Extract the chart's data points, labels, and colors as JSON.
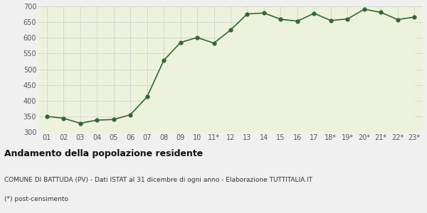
{
  "labels": [
    "01",
    "02",
    "03",
    "04",
    "05",
    "06",
    "07",
    "08",
    "09",
    "10",
    "11*",
    "12",
    "13",
    "14",
    "15",
    "16",
    "17",
    "18*",
    "19*",
    "20*",
    "21*",
    "22*",
    "23*"
  ],
  "values": [
    350,
    344,
    328,
    338,
    340,
    355,
    412,
    528,
    585,
    601,
    583,
    625,
    676,
    679,
    659,
    653,
    678,
    655,
    660,
    691,
    681,
    658,
    666
  ],
  "line_color": "#336633",
  "fill_color": "#edf2dc",
  "marker_color": "#336633",
  "bg_color": "#f0f0f0",
  "plot_bg_color": "#edf2dc",
  "grid_color": "#cccccc",
  "ylim": [
    300,
    700
  ],
  "yticks": [
    300,
    350,
    400,
    450,
    500,
    550,
    600,
    650,
    700
  ],
  "title": "Andamento della popolazione residente",
  "subtitle": "COMUNE DI BATTUDA (PV) - Dati ISTAT al 31 dicembre di ogni anno - Elaborazione TUTTITALIA.IT",
  "footnote": "(*) post-censimento",
  "title_fontsize": 9,
  "subtitle_fontsize": 6.5,
  "footnote_fontsize": 6.5,
  "tick_fontsize": 7,
  "axis_label_color": "#555555"
}
